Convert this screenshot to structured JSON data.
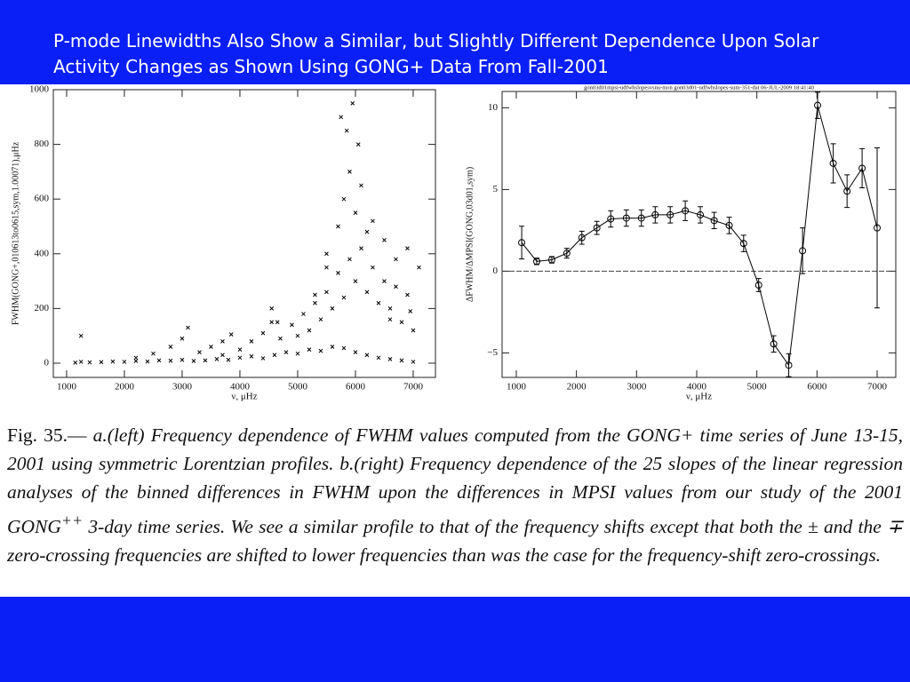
{
  "title": "P-mode Linewidths Also Show a Similar, but Slightly Different Dependence Upon Solar Activity Changes as Shown Using GONG+ Data From Fall-2001",
  "chart_data": [
    {
      "type": "scatter",
      "xlabel": "ν, μHz",
      "ylabel": "FWHM(GONG+,010613to0615,sym,1.00071),μHz",
      "color": "#000000",
      "xlim": [
        770,
        7385
      ],
      "ylim": [
        -52,
        1000
      ],
      "xticks": [
        1000,
        2000,
        3000,
        4000,
        5000,
        6000,
        7000
      ],
      "yticks": [
        0,
        200,
        400,
        600,
        800,
        1000
      ],
      "x": [
        1150,
        1250,
        1400,
        1600,
        1800,
        2000,
        2200,
        2400,
        2600,
        2800,
        3000,
        3200,
        3400,
        3600,
        3800,
        4000,
        4200,
        4400,
        4600,
        4800,
        5000,
        5200,
        5400,
        5600,
        5800,
        6000,
        6200,
        6400,
        6600,
        6800,
        7000,
        2200,
        2500,
        2800,
        3000,
        3100,
        3300,
        3500,
        3700,
        3850,
        3700,
        4000,
        4200,
        4400,
        4550,
        4700,
        4900,
        5100,
        5300,
        5500,
        5700,
        5900,
        6100,
        6300,
        6500,
        6700,
        6900,
        5000,
        5200,
        5400,
        5600,
        5800,
        6000,
        6200,
        6400,
        6600,
        6800,
        7000,
        5500,
        5700,
        5800,
        5900,
        6000,
        6100,
        6200,
        6300,
        6500,
        6700,
        6900,
        7100,
        5750,
        5850,
        5950,
        6050,
        1250,
        4550,
        4650,
        5300,
        5500,
        6600,
        6950
      ],
      "y": [
        2,
        5,
        3,
        4,
        6,
        5,
        8,
        6,
        10,
        9,
        12,
        8,
        10,
        15,
        12,
        20,
        25,
        18,
        30,
        40,
        35,
        50,
        45,
        60,
        55,
        40,
        30,
        20,
        15,
        10,
        5,
        20,
        35,
        60,
        90,
        130,
        40,
        60,
        80,
        105,
        30,
        50,
        80,
        110,
        150,
        90,
        140,
        180,
        220,
        260,
        330,
        380,
        420,
        350,
        300,
        280,
        250,
        100,
        120,
        160,
        200,
        240,
        300,
        260,
        220,
        200,
        150,
        120,
        400,
        500,
        600,
        700,
        550,
        650,
        480,
        520,
        450,
        380,
        420,
        350,
        900,
        850,
        950,
        800,
        100,
        200,
        150,
        250,
        350,
        160,
        190
      ]
    },
    {
      "type": "errorline",
      "header": "gon03d01mpsi-udfwhslopesvsnu-mon     gon03d01-udfwhslopes-sum-351-dat     06-JUL-2009     18:41:40",
      "xlabel": "ν, μHz",
      "ylabel": "ΔFWHM/ΔMPSI(GONG,03d01,sym)",
      "color": "#000000",
      "hline": 0,
      "xlim": [
        764,
        7310
      ],
      "ylim": [
        -6.5,
        11
      ],
      "xticks": [
        1000,
        2000,
        3000,
        4000,
        5000,
        6000,
        7000
      ],
      "yticks": [
        {
          "value": -5,
          "label": "−5"
        },
        0,
        5,
        10
      ],
      "x": [
        1090,
        1340,
        1590,
        1840,
        2090,
        2340,
        2570,
        2830,
        3080,
        3310,
        3560,
        3810,
        4060,
        4290,
        4540,
        4780,
        5030,
        5280,
        5530,
        5760,
        6010,
        6270,
        6500,
        6750,
        7000
      ],
      "values": [
        1.75,
        0.6,
        0.7,
        1.1,
        2.05,
        2.65,
        3.2,
        3.25,
        3.25,
        3.45,
        3.45,
        3.7,
        3.45,
        3.1,
        2.8,
        1.7,
        -0.85,
        -4.45,
        -5.75,
        1.25,
        10.15,
        6.6,
        4.9,
        6.3,
        2.65
      ],
      "errors": [
        1.0,
        0.2,
        0.2,
        0.3,
        0.4,
        0.4,
        0.5,
        0.5,
        0.5,
        0.5,
        0.5,
        0.6,
        0.5,
        0.5,
        0.5,
        0.5,
        0.4,
        0.5,
        0.7,
        1.4,
        0.8,
        1.2,
        1.0,
        1.2,
        4.9
      ]
    }
  ],
  "caption": {
    "label": "Fig. 35.—",
    "text": "a.(left) Frequency dependence of FWHM values computed from the GONG+ time series of June 13-15, 2001 using symmetric Lorentzian profiles. b.(right) Frequency dependence of the 25 slopes of the linear regression analyses of the binned differences in FWHM upon the differences in MPSI values from our study of the 2001 GONG",
    "sup": "++",
    "rest": "3-day time series. We see a similar profile to that of the frequency shifts except that both the ± and the ∓ zero-crossing frequencies are shifted to lower frequencies than was the case for the frequency-shift zero-crossings."
  }
}
